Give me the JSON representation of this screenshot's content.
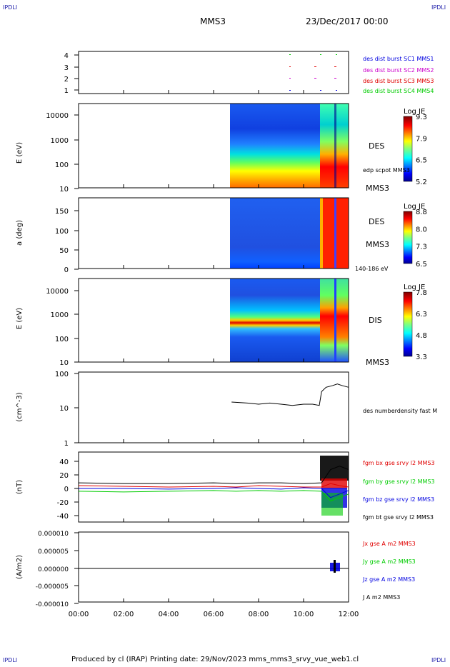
{
  "corner_label": "IPDLI",
  "header": {
    "spacecraft": "MMS3",
    "date": "23/Dec/2017 00:00"
  },
  "footer": {
    "text": "Produced by cl (IRAP)   Printing date: 29/Nov/2023   mms_mms3_srvy_vue_web1.cl"
  },
  "colors": {
    "red": "#e00000",
    "green": "#00cc00",
    "blue": "#0000e0",
    "magenta": "#cc00cc",
    "black": "#000000"
  },
  "chart_data": [
    {
      "type": "scatter",
      "panel": "burst",
      "yticks": [
        "4",
        "3",
        "2",
        "1"
      ],
      "legend": [
        {
          "label": "des dist burst SC1 MMS1",
          "color": "#0000e0"
        },
        {
          "label": "des dist burst SC2 MMS2",
          "color": "#cc00cc"
        },
        {
          "label": "des dist burst SC3 MMS3",
          "color": "#e00000"
        },
        {
          "label": "des dist burst SC4 MMS4",
          "color": "#00cc00"
        }
      ]
    },
    {
      "type": "heatmap",
      "panel": "des-energy",
      "ylabel": "E (eV)",
      "yticks": [
        "10000",
        "1000",
        "100",
        "10"
      ],
      "side_labels": [
        "DES",
        "edp scpot MMS3",
        "MMS3"
      ],
      "colorbar": {
        "title": "Log JE",
        "ticks": [
          "9.3",
          "7.9",
          "6.5",
          "5.2"
        ]
      }
    },
    {
      "type": "heatmap",
      "panel": "des-pitch",
      "ylabel": "a (deg)",
      "yticks": [
        "150",
        "100",
        "50",
        "0"
      ],
      "side_labels": [
        "DES",
        "MMS3",
        "140-186 eV"
      ],
      "colorbar": {
        "title": "Log JE",
        "ticks": [
          "8.8",
          "8.0",
          "7.3",
          "6.5"
        ]
      }
    },
    {
      "type": "heatmap",
      "panel": "dis-energy",
      "ylabel": "E (eV)",
      "yticks": [
        "10000",
        "1000",
        "100",
        "10"
      ],
      "side_labels": [
        "DIS",
        "MMS3"
      ],
      "colorbar": {
        "title": "Log JE",
        "ticks": [
          "7.8",
          "6.3",
          "4.8",
          "3.3"
        ]
      }
    },
    {
      "type": "line",
      "panel": "density",
      "ylabel": "(cm^-3)",
      "yticks": [
        "100",
        "10",
        "1"
      ],
      "ylim": [
        1,
        100
      ],
      "scale": "log",
      "series": [
        {
          "name": "des numberdensity fast M",
          "color": "#000000",
          "x": [
            6.8,
            7.5,
            8.0,
            8.5,
            9.0,
            9.5,
            10.0,
            10.4,
            10.7,
            10.8,
            11.0,
            11.3,
            11.5,
            11.7,
            12.0
          ],
          "y": [
            15,
            14,
            13,
            14,
            13,
            12,
            13,
            13,
            12,
            30,
            40,
            45,
            50,
            45,
            40
          ]
        }
      ]
    },
    {
      "type": "line",
      "panel": "fgm",
      "ylabel": "(nT)",
      "yticks": [
        "40",
        "20",
        "0",
        "-20",
        "-40"
      ],
      "ylim": [
        -50,
        50
      ],
      "series": [
        {
          "name": "fgm bx gse srvy l2 MMS3",
          "color": "#e00000",
          "x": [
            0,
            2,
            4,
            6,
            7,
            8,
            9,
            10,
            10.8,
            11.2,
            11.6,
            12
          ],
          "y": [
            2,
            1,
            0,
            1,
            0,
            2,
            1,
            0,
            0,
            5,
            2,
            0
          ]
        },
        {
          "name": "fgm by gse srvy l2 MMS3",
          "color": "#00cc00",
          "x": [
            0,
            2,
            4,
            6,
            7,
            8,
            9,
            10,
            10.8,
            11.2,
            11.6,
            12
          ],
          "y": [
            -6,
            -7,
            -6,
            -5,
            -6,
            -5,
            -6,
            -5,
            -6,
            -20,
            -15,
            -10
          ]
        },
        {
          "name": "fgm bz gse srvy l2 MMS3",
          "color": "#0000e0",
          "x": [
            0,
            2,
            4,
            6,
            7,
            8,
            9,
            10,
            10.8,
            11.2,
            11.6,
            12
          ],
          "y": [
            -2,
            -2,
            -3,
            -2,
            -1,
            -2,
            -3,
            -1,
            -2,
            -15,
            -10,
            -5
          ]
        },
        {
          "name": "fgm bt gse srvy l2 MMS3",
          "color": "#000000",
          "x": [
            0,
            2,
            4,
            6,
            7,
            8,
            9,
            10,
            10.8,
            11.2,
            11.6,
            12
          ],
          "y": [
            6,
            5,
            5,
            6,
            5,
            6,
            6,
            5,
            6,
            25,
            30,
            25
          ]
        }
      ]
    },
    {
      "type": "line",
      "panel": "current",
      "ylabel": "(A/m2)",
      "yticks": [
        "0.000010",
        "0.000005",
        "0.000000",
        "-0.000005",
        "-0.000010"
      ],
      "ylim": [
        -1e-05,
        1e-05
      ],
      "series": [
        {
          "name": "Jx gse A m2 MMS3",
          "color": "#e00000"
        },
        {
          "name": "Jy gse A m2 MMS3",
          "color": "#00cc00"
        },
        {
          "name": "Jz gse A m2 MMS3",
          "color": "#0000e0"
        },
        {
          "name": "J A m2 MMS3",
          "color": "#000000"
        }
      ]
    }
  ],
  "xticks": [
    "00:00",
    "02:00",
    "04:00",
    "06:00",
    "08:00",
    "10:00",
    "12:00"
  ]
}
